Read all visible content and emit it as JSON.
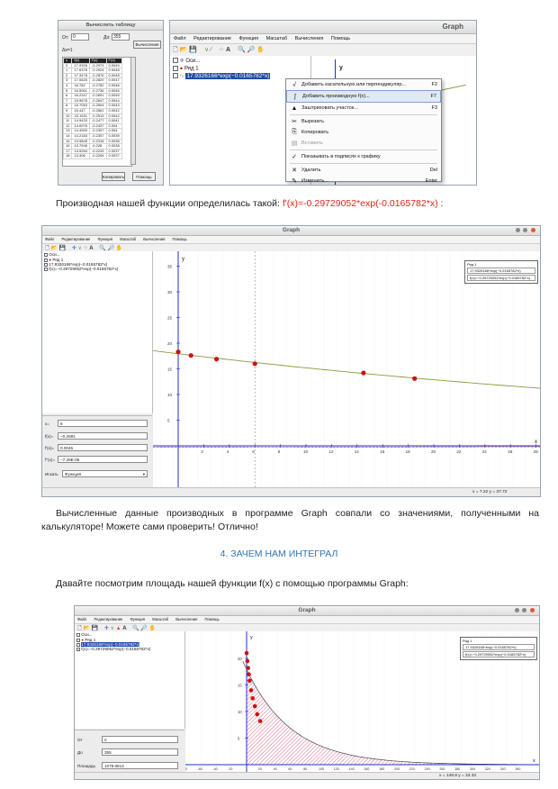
{
  "fig1": {
    "calc_panel": {
      "title": "Вычислить таблицу",
      "from_label": "От:",
      "from_value": "0",
      "to_label": "До:",
      "to_value": "355",
      "step_label": "Δx=1",
      "compute_button": "Вычисления",
      "columns": [
        "x",
        "f(x)",
        "f'(x)",
        "f''(x)"
      ],
      "rows": [
        [
          "0",
          "17.9326",
          "-0.2973",
          "0.0049"
        ],
        [
          "1",
          "17.6378",
          "-0.2924",
          "0.0048"
        ],
        [
          "2",
          "17.3478",
          "-0.2876",
          "0.0048"
        ],
        [
          "3",
          "17.0626",
          "-0.2829",
          "0.0047"
        ],
        [
          "4",
          "16.782",
          "-0.2782",
          "0.0046"
        ],
        [
          "5",
          "16.5061",
          "-0.2736",
          "0.0045"
        ],
        [
          "6",
          "16.2347",
          "-0.2691",
          "0.0045"
        ],
        [
          "7",
          "15.9678",
          "-0.2647",
          "0.0044"
        ],
        [
          "8",
          "15.7053",
          "-0.2604",
          "0.0043"
        ],
        [
          "9",
          "15.447",
          "-0.2561",
          "0.0042"
        ],
        [
          "10",
          "15.1931",
          "-0.2519",
          "0.0042"
        ],
        [
          "11",
          "14.9433",
          "-0.2477",
          "0.0041"
        ],
        [
          "12",
          "14.6976",
          "-0.2437",
          "0.004"
        ],
        [
          "13",
          "14.4559",
          "-0.2397",
          "0.004"
        ],
        [
          "14",
          "14.2183",
          "-0.2357",
          "0.0039"
        ],
        [
          "15",
          "13.9845",
          "-0.2318",
          "0.0038"
        ],
        [
          "16",
          "13.7546",
          "-0.228",
          "0.0038"
        ],
        [
          "17",
          "13.5284",
          "-0.2243",
          "0.0037"
        ],
        [
          "18",
          "13.306",
          "-0.2206",
          "0.0037"
        ]
      ],
      "copy_button": "Копировать",
      "help_button": "Помощь"
    },
    "app": {
      "title": "Graph",
      "menu": [
        "Файл",
        "Редактирование",
        "Функция",
        "Масштаб",
        "Вычисления",
        "Помощь"
      ],
      "tree": [
        "Оси...",
        "Ряд 1",
        "17.9326166*exp(−0.0165782*x)"
      ],
      "y_label": "y",
      "context_menu": [
        {
          "icon": "√",
          "label": "Добавить касательную или перпендикуляр...",
          "key": "F2"
        },
        {
          "icon": "∫",
          "label": "Добавить производную f(x)...",
          "key": "F7"
        },
        {
          "icon": "▲",
          "label": "Заштриховать участок...",
          "key": "F3"
        },
        {
          "icon": "✂",
          "label": "Вырезать",
          "key": ""
        },
        {
          "icon": "⎘",
          "label": "Копировать",
          "key": ""
        },
        {
          "icon": "▤",
          "label": "Вставить",
          "key": ""
        },
        {
          "icon": "✓",
          "label": "Показывать в подписях к графику",
          "key": ""
        },
        {
          "icon": "✕",
          "label": "Удалить",
          "key": "Del"
        },
        {
          "icon": "✎",
          "label": "Изменить...",
          "key": "Enter"
        }
      ]
    }
  },
  "para1": {
    "text": "Производная нашей функции определилась такой: ",
    "formula": "f'(x)=-0.29729052*exp(-0.0165782*x)",
    "tail": " :"
  },
  "fig2": {
    "title": "Graph",
    "menu": [
      "Файл",
      "Редактирование",
      "Функция",
      "Масштаб",
      "Вычисления",
      "Помощь"
    ],
    "tree": [
      "Оси...",
      "Ряд 1",
      "17.9326166*exp(−0.0165782*x)",
      "f(x)=−0.29729052*exp(−0.0165782*x)"
    ],
    "x_field": {
      "label": "x=",
      "value": "6"
    },
    "f_field": {
      "label": "f(x)=",
      "value": "−0.2691"
    },
    "d1_field": {
      "label": "f'(x)=",
      "value": "0.0045"
    },
    "d2_field": {
      "label": "f''(x)=",
      "value": "−7.39E-05"
    },
    "search_label": "Искать",
    "search_value": "Функция",
    "legend": [
      "Ряд 1",
      "17.9326166*exp(−0.0165782*x)",
      "f(x)=−0.29729052*exp(−0.0165782*x)"
    ],
    "status": "x = 7.22    y = 37.72",
    "x_axis_label": "x",
    "y_axis_label": "y",
    "x_ticks": [
      "2",
      "4",
      "6",
      "8",
      "10",
      "12",
      "14",
      "16",
      "18",
      "20",
      "22",
      "24",
      "26",
      "28"
    ],
    "y_ticks": [
      "35",
      "30",
      "25",
      "20",
      "15",
      "10",
      "5"
    ]
  },
  "para2": {
    "text": "Вычисленные данные производных в программе Graph совпали со значениями, полученными на калькуляторе! Можете сами проверить! Отлично!"
  },
  "heading": "4. ЗАЧЕМ НАМ ИНТЕГРАЛ",
  "para3": {
    "text": "Давайте посмотрим площадь нашей функции f(x) с помощью программы Graph:"
  },
  "fig3": {
    "title": "Graph",
    "menu": [
      "Файл",
      "Редактирование",
      "Функция",
      "Масштаб",
      "Вычисления",
      "Помощь"
    ],
    "tree": [
      "Оси...",
      "Ряд 1",
      "17.9326166*exp(−0.0165782*x)",
      "f(x)=−0.29729052*exp(−0.0165782*x)"
    ],
    "from_label": "От",
    "from_value": "0",
    "to_label": "До",
    "to_value": "355",
    "area_label": "Площадь",
    "area_value": "1078.6813",
    "legend": [
      "Ряд 1",
      "17.9326166*exp(−0.0165782*x)",
      "f(x)=−0.29729052*exp(−0.0165782*x)"
    ],
    "status": "x = 148.8    y = 22.33",
    "x_axis_label": "x",
    "y_axis_label": "y",
    "x_ticks": [
      "-120",
      "-100",
      "-80",
      "-60",
      "-40",
      "-20",
      "20",
      "40",
      "60",
      "80",
      "100",
      "120",
      "140",
      "160",
      "180",
      "200",
      "220",
      "240",
      "260",
      "280",
      "300",
      "320",
      "340",
      "360"
    ],
    "y_ticks": [
      "20",
      "15",
      "10",
      "5"
    ]
  },
  "colors": {
    "formula": "#e2231a",
    "heading": "#2e74b5",
    "point": "#cc1111",
    "curve": "#8a9a3c",
    "hatch": "#d6456b",
    "axis": "#1d2fd1",
    "selection": "#1f4aa8"
  }
}
